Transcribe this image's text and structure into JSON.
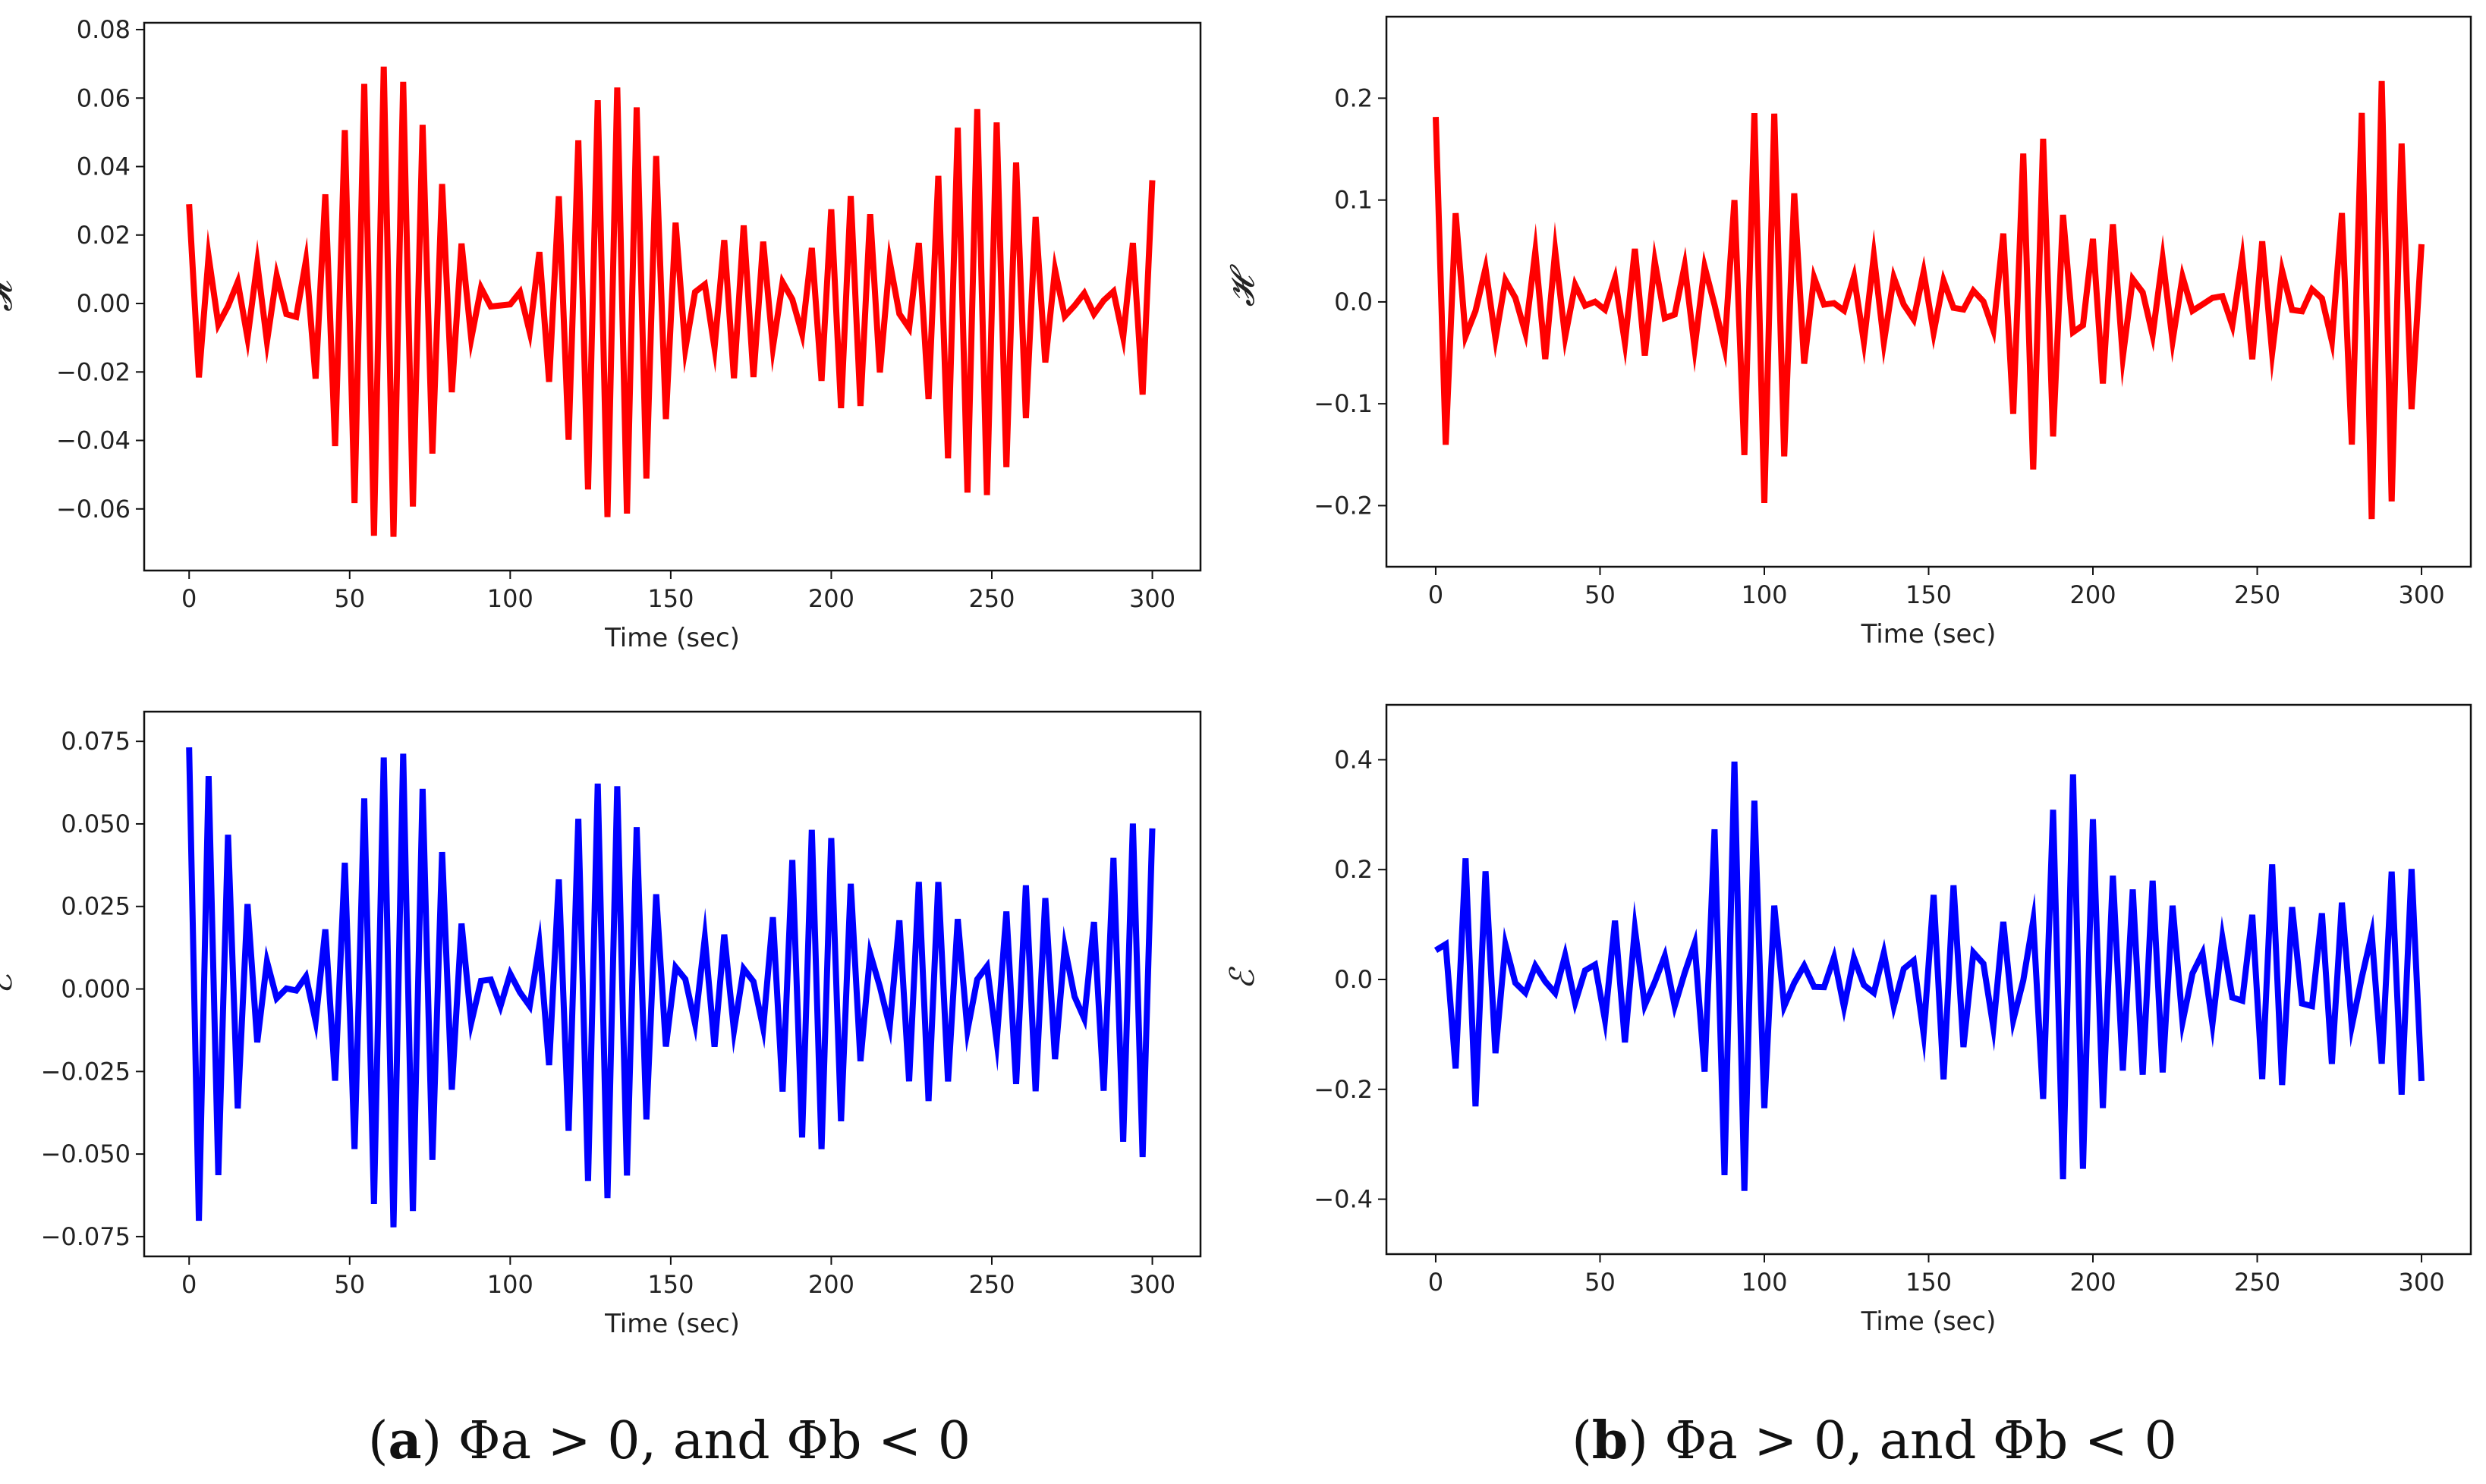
{
  "captions": {
    "a": {
      "letter": "a",
      "text": "Φa > 0, and Φb < 0"
    },
    "b": {
      "letter": "b",
      "text": "Φa > 0, and Φb < 0"
    }
  },
  "chart_data": [
    {
      "id": "a-top",
      "type": "line",
      "color": "#ff0000",
      "xlabel": "Time (sec)",
      "ylabel": "𝓗",
      "xlim": [
        -14,
        315
      ],
      "ylim": [
        -0.078,
        0.082
      ],
      "xticks": [
        0,
        50,
        100,
        150,
        200,
        250,
        300
      ],
      "yticks": [
        -0.06,
        -0.04,
        -0.02,
        0.0,
        0.02,
        0.04,
        0.06,
        0.08
      ],
      "ytick_labels": [
        "−0.06",
        "−0.04",
        "−0.02",
        "0.00",
        "0.02",
        "0.04",
        "0.06",
        "0.08"
      ],
      "series": [
        {
          "name": "H",
          "x0": 0,
          "x1": 300,
          "n": 100,
          "components": [
            {
              "a": 0.0355,
              "p": 3.1,
              "ph": 1.15
            },
            {
              "a": 0.0355,
              "p": 3.4,
              "ph": 1.15
            }
          ]
        }
      ]
    },
    {
      "id": "a-bottom",
      "type": "line",
      "color": "#0000ff",
      "xlabel": "Time (sec)",
      "ylabel": "ℰ",
      "xlim": [
        -14,
        315
      ],
      "ylim": [
        -0.081,
        0.084
      ],
      "xticks": [
        0,
        50,
        100,
        150,
        200,
        250,
        300
      ],
      "yticks": [
        -0.075,
        -0.05,
        -0.025,
        0.0,
        0.025,
        0.05,
        0.075
      ],
      "ytick_labels": [
        "−0.075",
        "−0.050",
        "−0.025",
        "0.000",
        "0.025",
        "0.050",
        "0.075"
      ],
      "series": [
        {
          "name": "E",
          "x0": 0,
          "x1": 300,
          "n": 100,
          "components": [
            {
              "a": 0.037,
              "p": 3.12,
              "ph": 0.15
            },
            {
              "a": 0.037,
              "p": 3.43,
              "ph": 0.15
            }
          ]
        }
      ]
    },
    {
      "id": "b-top",
      "type": "line",
      "color": "#ff0000",
      "xlabel": "Time (sec)",
      "ylabel": "𝓗",
      "xlim": [
        -15,
        315
      ],
      "ylim": [
        -0.26,
        0.28
      ],
      "xticks": [
        0,
        50,
        100,
        150,
        200,
        250,
        300
      ],
      "yticks": [
        -0.2,
        -0.1,
        0.0,
        0.1,
        0.2
      ],
      "ytick_labels": [
        "−0.2",
        "−0.1",
        "0.0",
        "0.1",
        "0.2"
      ],
      "series": [
        {
          "name": "H",
          "x0": 0,
          "x1": 300,
          "n": 100,
          "components": [
            {
              "a": 0.055,
              "p": 3.1,
              "ph": 0.6
            },
            {
              "a": 0.055,
              "p": 3.3,
              "ph": 0.6
            },
            {
              "a": 0.055,
              "p": 3.5,
              "ph": 0.6
            },
            {
              "a": 0.055,
              "p": 3.7,
              "ph": 0.6
            }
          ]
        }
      ]
    },
    {
      "id": "b-bottom",
      "type": "line",
      "color": "#0000ff",
      "xlabel": "Time (sec)",
      "ylabel": "ℰ",
      "xlim": [
        -15,
        315
      ],
      "ylim": [
        -0.5,
        0.5
      ],
      "xticks": [
        0,
        50,
        100,
        150,
        200,
        250,
        300
      ],
      "yticks": [
        -0.4,
        -0.2,
        0.0,
        0.2,
        0.4
      ],
      "ytick_labels": [
        "−0.4",
        "−0.2",
        "0.0",
        "0.2",
        "0.4"
      ],
      "series": [
        {
          "name": "E",
          "x0": 0,
          "x1": 300,
          "n": 100,
          "components": [
            {
              "a": 0.11,
              "p": 3.12,
              "ph": 1.45
            },
            {
              "a": 0.11,
              "p": 3.31,
              "ph": 1.45
            },
            {
              "a": 0.11,
              "p": 3.5,
              "ph": 1.45
            },
            {
              "a": 0.11,
              "p": 3.72,
              "ph": 1.45
            }
          ]
        }
      ]
    }
  ]
}
